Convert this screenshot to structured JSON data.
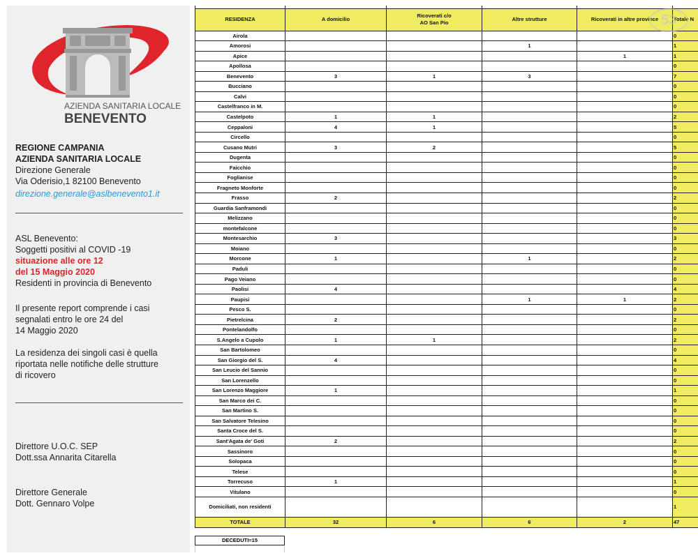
{
  "left": {
    "logo": {
      "line1": "AZIENDA SANITARIA LOCALE",
      "line2": "BENEVENTO"
    },
    "address": [
      "REGIONE CAMPANIA",
      "AZIENDA SANITARIA LOCALE",
      "Direzione Generale",
      "Via Oderisio,1 82100 Benevento"
    ],
    "email": "direzione.generale@aslbenevento1.it",
    "report_title": [
      "ASL Benevento:",
      "Soggetti positivi al COVID -19"
    ],
    "situation": [
      "situazione alle ore 12",
      "del 15 Maggio 2020"
    ],
    "residents": "Residenti in provincia di Benevento",
    "note1": [
      "Il presente report comprende i casi",
      "segnalati entro le ore 24 del",
      "14 Maggio 2020"
    ],
    "note2": [
      "La residenza dei singoli casi è quella",
      "riportata nelle notifiche delle strutture",
      "di ricovero"
    ],
    "director1": [
      "Direttore U.O.C. SEP",
      "Dott.ssa Annarita Citarella"
    ],
    "director2": [
      "Direttore Generale",
      "Dott. Gennaro Volpe"
    ]
  },
  "table": {
    "headers": [
      "RESIDENZA",
      "A domicilio",
      "Ricoverati c/o\nAO San Pio",
      "Altre strutture",
      "Ricoverati in altre province",
      "Totale N"
    ],
    "rows": [
      [
        "Airola",
        "",
        "",
        "",
        "",
        "0"
      ],
      [
        "Amorosi",
        "",
        "",
        "1",
        "",
        "1"
      ],
      [
        "Apice",
        "",
        "",
        "",
        "1",
        "1"
      ],
      [
        "Apollosa",
        "",
        "",
        "",
        "",
        "0"
      ],
      [
        "Benevento",
        "3",
        "1",
        "3",
        "",
        "7"
      ],
      [
        "Bucciano",
        "",
        "",
        "",
        "",
        "0"
      ],
      [
        "Calvi",
        "",
        "",
        "",
        "",
        "0"
      ],
      [
        "Castelfranco in M.",
        "",
        "",
        "",
        "",
        "0"
      ],
      [
        "Castelpoto",
        "1",
        "1",
        "",
        "",
        "2"
      ],
      [
        "Ceppaloni",
        "4",
        "1",
        "",
        "",
        "5"
      ],
      [
        "Circello",
        "",
        "",
        "",
        "",
        "0"
      ],
      [
        "Cusano Mutri",
        "3",
        "2",
        "",
        "",
        "5"
      ],
      [
        "Dugenta",
        "",
        "",
        "",
        "",
        "0"
      ],
      [
        "Faicchio",
        "",
        "",
        "",
        "",
        "0"
      ],
      [
        "Foglianise",
        "",
        "",
        "",
        "",
        "0"
      ],
      [
        "Fragneto Monforte",
        "",
        "",
        "",
        "",
        "0"
      ],
      [
        "Frasso",
        "2",
        "",
        "",
        "",
        "2"
      ],
      [
        "Guardia Sanframondi",
        "",
        "",
        "",
        "",
        "0"
      ],
      [
        "Melizzano",
        "",
        "",
        "",
        "",
        "0"
      ],
      [
        "montefalcone",
        "",
        "",
        "",
        "",
        "0"
      ],
      [
        "Montesarchio",
        "3",
        "",
        "",
        "",
        "3"
      ],
      [
        "Moiano",
        "",
        "",
        "",
        "",
        "0"
      ],
      [
        "Morcone",
        "1",
        "",
        "1",
        "",
        "2"
      ],
      [
        "Paduli",
        "",
        "",
        "",
        "",
        "0"
      ],
      [
        "Pago Veiano",
        "",
        "",
        "",
        "",
        "0"
      ],
      [
        "Paolisi",
        "4",
        "",
        "",
        "",
        "4"
      ],
      [
        "Paupisi",
        "",
        "",
        "1",
        "1",
        "2"
      ],
      [
        "Pesco S.",
        "",
        "",
        "",
        "",
        "0"
      ],
      [
        "Pietrelcina",
        "2",
        "",
        "",
        "",
        "2"
      ],
      [
        "Pontelandolfo",
        "",
        "",
        "",
        "",
        "0"
      ],
      [
        "S.Angelo a Cupolo",
        "1",
        "1",
        "",
        "",
        "2"
      ],
      [
        "San Bartolomeo",
        "",
        "",
        "",
        "",
        "0"
      ],
      [
        "San Giorgio del S.",
        "4",
        "",
        "",
        "",
        "4"
      ],
      [
        "San Leucio del Sannio",
        "",
        "",
        "",
        "",
        "0"
      ],
      [
        "San Lorenzello",
        "",
        "",
        "",
        "",
        "0"
      ],
      [
        "San Lorenzo Maggiore",
        "1",
        "",
        "",
        "",
        "1"
      ],
      [
        "San Marco dei C.",
        "",
        "",
        "",
        "",
        "0"
      ],
      [
        "San Martino S.",
        "",
        "",
        "",
        "",
        "0"
      ],
      [
        "San Salvatore Telesino",
        "",
        "",
        "",
        "",
        "0"
      ],
      [
        "Santa Croce del S.",
        "",
        "",
        "",
        "",
        "0"
      ],
      [
        "Sant'Agata de' Goti",
        "2",
        "",
        "",
        "",
        "2"
      ],
      [
        "Sassinoro",
        "",
        "",
        "",
        "",
        "0"
      ],
      [
        "Solopaca",
        "",
        "",
        "",
        "",
        "0"
      ],
      [
        "Telese",
        "",
        "",
        "",
        "",
        "0"
      ],
      [
        "Torrecuso",
        "1",
        "",
        "",
        "",
        "1"
      ],
      [
        "Vitulano",
        "",
        "",
        "",
        "",
        "0"
      ]
    ],
    "domiciled": [
      "Domiciliati, non residenti",
      "",
      "",
      "",
      "",
      "1"
    ],
    "total": [
      "TOTALE",
      "32",
      "6",
      "6",
      "2",
      "47"
    ]
  },
  "deceased": "DECEDUTI=15",
  "watermark": "53",
  "colors": {
    "header_yellow": "#f0ec62",
    "accent_red": "#d9262c",
    "link_blue": "#1f9be0"
  }
}
